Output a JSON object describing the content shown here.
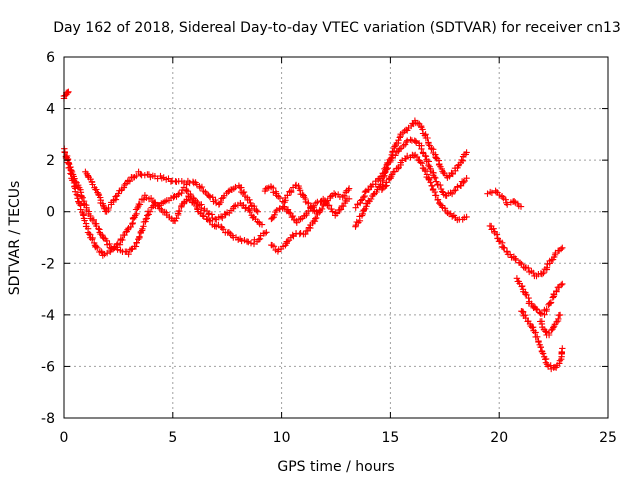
{
  "chart_data": {
    "type": "scatter",
    "title": "Day 162 of 2018, Sidereal Day-to-day VTEC variation (SDTVAR) for receiver cn13",
    "xlabel": "GPS time / hours",
    "ylabel": "SDTVAR / TECUs",
    "xlim": [
      0,
      25
    ],
    "ylim": [
      -8,
      6
    ],
    "xticks": [
      0,
      5,
      10,
      15,
      20,
      25
    ],
    "yticks": [
      -8,
      -6,
      -4,
      -2,
      0,
      2,
      4,
      6
    ],
    "grid": true,
    "marker": "+",
    "color": "#ff0000",
    "series_outline": [
      {
        "name": "cluster-start-high",
        "x": [
          0.0,
          0.05,
          0.1,
          0.15,
          0.2
        ],
        "y": [
          4.4,
          4.5,
          4.6,
          4.55,
          4.65
        ]
      },
      {
        "name": "track-1",
        "x": [
          0.0,
          0.3,
          0.6,
          0.9,
          1.2,
          1.5,
          1.8,
          2.1,
          2.4,
          2.7,
          3.0,
          3.3,
          3.6,
          3.9,
          4.2,
          4.5,
          4.8,
          5.1,
          5.4,
          5.7,
          6.0,
          6.3,
          6.6,
          6.9,
          7.2,
          7.5,
          7.8,
          8.1,
          8.4,
          8.7,
          9.0,
          9.3
        ],
        "y": [
          2.4,
          1.6,
          0.6,
          -0.2,
          -0.9,
          -1.4,
          -1.7,
          -1.6,
          -1.4,
          -1.5,
          -1.6,
          -1.3,
          -0.6,
          0.0,
          0.3,
          0.1,
          -0.2,
          -0.4,
          0.2,
          0.6,
          0.3,
          -0.1,
          -0.3,
          -0.5,
          -0.6,
          -0.8,
          -1.0,
          -1.1,
          -1.2,
          -1.2,
          -1.0,
          -0.8
        ]
      },
      {
        "name": "track-2",
        "x": [
          0.1,
          0.4,
          0.7,
          1.0,
          1.3,
          1.6,
          1.9,
          2.2,
          2.5,
          2.8,
          3.1,
          3.4,
          3.7,
          4.0,
          4.3,
          5.2,
          5.5,
          5.8,
          6.1,
          6.4,
          6.7,
          7.0,
          7.3,
          7.6,
          7.9,
          8.2,
          8.5,
          8.8,
          9.1
        ],
        "y": [
          2.2,
          1.5,
          0.9,
          0.2,
          -0.3,
          -0.7,
          -1.1,
          -1.4,
          -1.3,
          -0.9,
          -0.5,
          0.2,
          0.6,
          0.5,
          0.2,
          0.6,
          0.9,
          0.7,
          0.4,
          0.1,
          -0.1,
          -0.3,
          -0.2,
          0.0,
          0.2,
          0.3,
          0.0,
          -0.3,
          -0.5
        ]
      },
      {
        "name": "track-3",
        "x": [
          1.0,
          1.3,
          1.6,
          1.9,
          2.2,
          2.5,
          2.8,
          3.1,
          3.4,
          5.6,
          5.9,
          6.2,
          6.5,
          6.8,
          7.1,
          7.4,
          7.7,
          8.0,
          8.3,
          8.6,
          8.9
        ],
        "y": [
          1.6,
          1.1,
          0.6,
          0.0,
          0.3,
          0.7,
          1.0,
          1.3,
          1.5,
          1.1,
          1.2,
          1.0,
          0.8,
          0.5,
          0.3,
          0.6,
          0.9,
          1.0,
          0.7,
          0.3,
          0.0
        ]
      },
      {
        "name": "track-4",
        "x": [
          9.5,
          9.8,
          10.1,
          10.4,
          10.7,
          11.0,
          11.3,
          11.6,
          11.9,
          12.2,
          12.5,
          12.8,
          13.1
        ],
        "y": [
          -1.3,
          -1.5,
          -1.4,
          -1.0,
          -0.8,
          -0.9,
          -0.6,
          -0.2,
          0.2,
          0.5,
          0.7,
          0.6,
          0.9
        ]
      },
      {
        "name": "track-5",
        "x": [
          9.5,
          9.8,
          10.1,
          10.4,
          10.7,
          11.0,
          11.3,
          11.6,
          11.9,
          12.2,
          12.5,
          12.8,
          13.1
        ],
        "y": [
          -0.3,
          0.0,
          0.2,
          -0.1,
          -0.4,
          -0.2,
          0.1,
          0.3,
          0.5,
          0.2,
          -0.1,
          0.2,
          0.5
        ]
      },
      {
        "name": "track-6",
        "x": [
          9.2,
          9.5,
          9.8,
          10.1,
          10.4,
          10.7,
          11.0,
          11.3,
          11.6
        ],
        "y": [
          0.8,
          1.0,
          0.6,
          0.4,
          0.8,
          1.0,
          0.6,
          0.2,
          0.0
        ]
      },
      {
        "name": "track-7",
        "x": [
          13.4,
          13.7,
          14.0,
          14.3,
          14.6,
          14.9,
          15.2,
          15.5,
          15.8,
          16.1,
          16.4,
          16.7,
          17.0,
          17.3,
          17.6,
          17.9,
          18.2,
          18.5
        ],
        "y": [
          -0.6,
          -0.1,
          0.4,
          0.7,
          1.1,
          1.8,
          2.5,
          3.0,
          3.2,
          3.5,
          3.3,
          2.8,
          2.3,
          1.7,
          1.3,
          1.5,
          1.9,
          2.3
        ]
      },
      {
        "name": "track-8",
        "x": [
          13.4,
          13.7,
          14.0,
          14.3,
          14.6,
          14.9,
          15.2,
          15.5,
          15.8,
          16.1,
          16.4,
          16.7,
          17.0,
          17.3,
          17.6,
          17.9,
          18.2,
          18.5
        ],
        "y": [
          0.2,
          0.5,
          0.9,
          1.1,
          1.4,
          1.9,
          2.2,
          2.5,
          2.7,
          2.8,
          2.5,
          2.0,
          1.4,
          0.9,
          0.6,
          0.8,
          1.0,
          1.3
        ]
      },
      {
        "name": "track-9",
        "x": [
          14.6,
          14.9,
          15.2,
          15.5,
          15.8,
          16.1,
          16.4,
          16.7,
          17.0,
          17.3,
          17.6,
          17.9,
          18.2,
          18.5
        ],
        "y": [
          0.8,
          1.2,
          1.6,
          1.9,
          2.1,
          2.2,
          1.9,
          1.4,
          0.8,
          0.3,
          0.0,
          -0.2,
          -0.3,
          -0.2
        ]
      },
      {
        "name": "track-10",
        "x": [
          19.5,
          19.8,
          20.1,
          20.4,
          20.7,
          21.0
        ],
        "y": [
          0.7,
          0.8,
          0.6,
          0.3,
          0.4,
          0.2
        ]
      },
      {
        "name": "track-11",
        "x": [
          19.6,
          19.9,
          20.2,
          20.5,
          20.8,
          21.1,
          21.4,
          21.7,
          22.0,
          22.3,
          22.6,
          22.9
        ],
        "y": [
          -0.5,
          -1.0,
          -1.4,
          -1.7,
          -1.9,
          -2.1,
          -2.3,
          -2.5,
          -2.4,
          -2.0,
          -1.6,
          -1.4
        ]
      },
      {
        "name": "track-12",
        "x": [
          20.8,
          21.1,
          21.4,
          21.7,
          22.0,
          22.3,
          22.6,
          22.9
        ],
        "y": [
          -2.6,
          -3.0,
          -3.5,
          -3.8,
          -4.0,
          -3.6,
          -3.1,
          -2.8
        ]
      },
      {
        "name": "track-13",
        "x": [
          21.0,
          21.3,
          21.6,
          21.9,
          22.2,
          22.5,
          22.8,
          22.9
        ],
        "y": [
          -3.8,
          -4.2,
          -4.6,
          -5.2,
          -5.9,
          -6.1,
          -5.8,
          -5.3
        ]
      },
      {
        "name": "track-14",
        "x": [
          21.9,
          22.2,
          22.5,
          22.8
        ],
        "y": [
          -4.2,
          -4.8,
          -4.5,
          -4.0
        ]
      }
    ]
  }
}
